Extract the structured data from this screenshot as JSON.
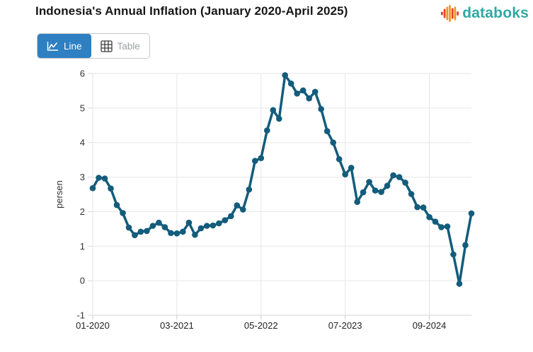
{
  "header": {
    "title": "Indonesia's Annual Inflation (January 2020-April 2025)",
    "brand": {
      "name": "databoks",
      "text_color": "#2FA9A2",
      "icon_bar_colors": [
        "#E8432D",
        "#E8432D",
        "#F7941D",
        "#F7941D",
        "#E8432D",
        "#F7941D",
        "#E8432D"
      ]
    }
  },
  "toolbar": {
    "line_label": "Line",
    "table_label": "Table",
    "active_bg": "#2E80C2",
    "inactive_text": "#9AA0A6"
  },
  "chart_data": {
    "type": "line",
    "title": "Indonesia's Annual Inflation (January 2020-April 2025)",
    "xlabel": "",
    "ylabel": "persen",
    "ylim": [
      -1,
      6
    ],
    "yticks": [
      6,
      5,
      4,
      3,
      2,
      1,
      0,
      -1
    ],
    "grid": true,
    "legend": "none",
    "marker": "circle",
    "line_color": "#135C7C",
    "gridline_color": "#e6e6e6",
    "axis_line_color": "#d4d4d4",
    "tick_label_color": "#333333",
    "xtick_labels": [
      "01-2020",
      "03-2021",
      "05-2022",
      "07-2023",
      "09-2024"
    ],
    "xtick_indices": [
      0,
      14,
      28,
      42,
      56
    ],
    "x": [
      "01-2020",
      "02-2020",
      "03-2020",
      "04-2020",
      "05-2020",
      "06-2020",
      "07-2020",
      "08-2020",
      "09-2020",
      "10-2020",
      "11-2020",
      "12-2020",
      "01-2021",
      "02-2021",
      "03-2021",
      "04-2021",
      "05-2021",
      "06-2021",
      "07-2021",
      "08-2021",
      "09-2021",
      "10-2021",
      "11-2021",
      "12-2021",
      "01-2022",
      "02-2022",
      "03-2022",
      "04-2022",
      "05-2022",
      "06-2022",
      "07-2022",
      "08-2022",
      "09-2022",
      "10-2022",
      "11-2022",
      "12-2022",
      "01-2023",
      "02-2023",
      "03-2023",
      "04-2023",
      "05-2023",
      "06-2023",
      "07-2023",
      "08-2023",
      "09-2023",
      "10-2023",
      "11-2023",
      "12-2023",
      "01-2024",
      "02-2024",
      "03-2024",
      "04-2024",
      "05-2024",
      "06-2024",
      "07-2024",
      "08-2024",
      "09-2024",
      "10-2024",
      "11-2024",
      "12-2024",
      "01-2025",
      "02-2025",
      "03-2025",
      "04-2025"
    ],
    "series": [
      {
        "name": "Annual inflation (persen)",
        "color": "#135C7C",
        "values": [
          2.68,
          2.98,
          2.96,
          2.67,
          2.19,
          1.96,
          1.54,
          1.32,
          1.42,
          1.44,
          1.59,
          1.68,
          1.55,
          1.38,
          1.37,
          1.42,
          1.68,
          1.33,
          1.52,
          1.59,
          1.6,
          1.66,
          1.75,
          1.87,
          2.18,
          2.06,
          2.64,
          3.47,
          3.55,
          4.35,
          4.94,
          4.69,
          5.95,
          5.71,
          5.42,
          5.51,
          5.28,
          5.47,
          4.97,
          4.33,
          4.0,
          3.52,
          3.08,
          3.27,
          2.28,
          2.56,
          2.86,
          2.61,
          2.57,
          2.75,
          3.05,
          3.0,
          2.84,
          2.51,
          2.13,
          2.12,
          1.84,
          1.71,
          1.55,
          1.57,
          0.76,
          -0.09,
          1.03,
          1.95
        ]
      }
    ]
  }
}
